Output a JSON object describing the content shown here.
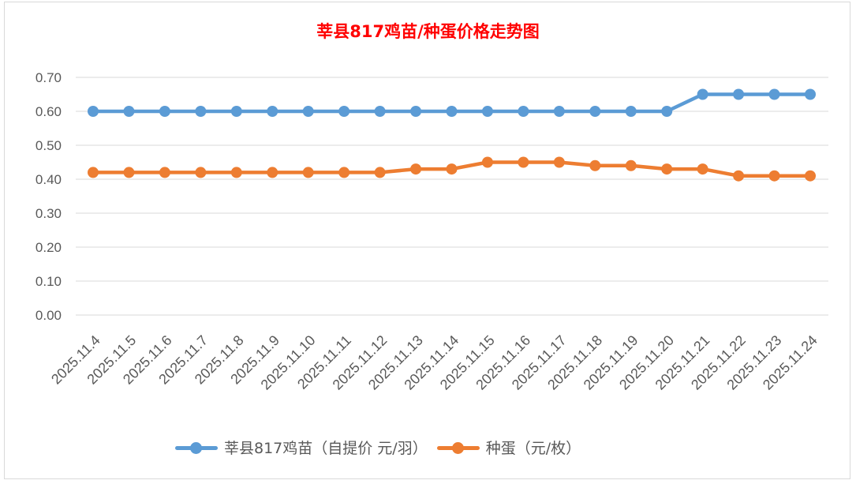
{
  "chart_data": {
    "type": "line",
    "title": "莘县817鸡苗/种蛋价格走势图",
    "xlabel": "",
    "ylabel": "",
    "ylim": [
      0,
      0.7
    ],
    "yticks": [
      "0.00",
      "0.10",
      "0.20",
      "0.30",
      "0.40",
      "0.50",
      "0.60",
      "0.70"
    ],
    "grid": true,
    "legend_position": "bottom",
    "categories": [
      "2025.11.4",
      "2025.11.5",
      "2025.11.6",
      "2025.11.7",
      "2025.11.8",
      "2025.11.9",
      "2025.11.10",
      "2025.11.11",
      "2025.11.12",
      "2025.11.13",
      "2025.11.14",
      "2025.11.15",
      "2025.11.16",
      "2025.11.17",
      "2025.11.18",
      "2025.11.19",
      "2025.11.20",
      "2025.11.21",
      "2025.11.22",
      "2025.11.23",
      "2025.11.24"
    ],
    "series": [
      {
        "name": "莘县817鸡苗（自提价 元/羽）",
        "color": "#5b9bd5",
        "values": [
          0.6,
          0.6,
          0.6,
          0.6,
          0.6,
          0.6,
          0.6,
          0.6,
          0.6,
          0.6,
          0.6,
          0.6,
          0.6,
          0.6,
          0.6,
          0.6,
          0.6,
          0.65,
          0.65,
          0.65,
          0.65
        ]
      },
      {
        "name": "种蛋（元/枚）",
        "color": "#ed7d31",
        "values": [
          0.42,
          0.42,
          0.42,
          0.42,
          0.42,
          0.42,
          0.42,
          0.42,
          0.42,
          0.43,
          0.43,
          0.45,
          0.45,
          0.45,
          0.44,
          0.44,
          0.43,
          0.43,
          0.41,
          0.41,
          0.41
        ]
      }
    ]
  }
}
